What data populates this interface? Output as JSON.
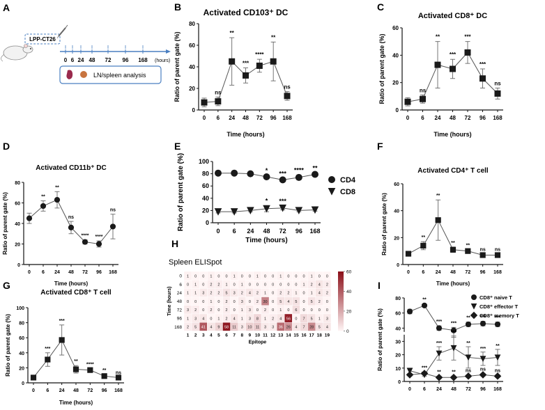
{
  "panels": {
    "A": {
      "letter": "A",
      "tumor_label": "LPP-CT26",
      "time_ticks": [
        "0",
        "6",
        "24",
        "48",
        "72",
        "96",
        "168"
      ],
      "axis_unit": "(hours)",
      "analysis_label": "LN/spleen analysis"
    },
    "H": {
      "letter": "H",
      "title": "Spleen ELISpot",
      "ylabel": "Time (hours)",
      "xlabel": "Epitope",
      "colorbar_ticks": [
        "0",
        "20",
        "40",
        "60"
      ]
    }
  },
  "chart_data": [
    {
      "panel": "B",
      "type": "line",
      "title": "Activated CD103⁺ DC",
      "xlabel": "Time (hours)",
      "ylabel": "Ratio of parent gate (%)",
      "categories": [
        "0",
        "6",
        "24",
        "48",
        "72",
        "96",
        "168"
      ],
      "ylim": [
        0,
        80
      ],
      "yticks": [
        0,
        20,
        40,
        60,
        80
      ],
      "series": [
        {
          "name": "CD103⁺ DC",
          "marker": "square",
          "values": [
            7,
            8,
            45,
            32,
            41,
            45,
            13
          ],
          "errors": [
            4,
            4,
            22,
            7,
            6,
            18,
            4
          ]
        }
      ],
      "annotations": [
        "",
        "ns",
        "**",
        "***",
        "****",
        "**",
        "ns"
      ]
    },
    {
      "panel": "C",
      "type": "line",
      "title": "Activated CD8⁺ DC",
      "xlabel": "Time (hours)",
      "ylabel": "Ratio of parent gate (%)",
      "categories": [
        "0",
        "6",
        "24",
        "48",
        "72",
        "96",
        "168"
      ],
      "ylim": [
        0,
        60
      ],
      "yticks": [
        0,
        20,
        40,
        60
      ],
      "series": [
        {
          "name": "CD8⁺ DC",
          "marker": "square",
          "values": [
            6,
            8,
            33,
            30,
            42,
            23,
            12
          ],
          "errors": [
            3,
            3,
            17,
            7,
            8,
            7,
            4
          ]
        }
      ],
      "annotations": [
        "",
        "ns",
        "**",
        "***",
        "***",
        "***",
        "ns"
      ]
    },
    {
      "panel": "D",
      "type": "line",
      "title": "Activated CD11b⁺ DC",
      "xlabel": "Time (hours)",
      "ylabel": "Ratio of parent gate (%)",
      "categories": [
        "0",
        "6",
        "24",
        "48",
        "72",
        "96",
        "168"
      ],
      "ylim": [
        0,
        80
      ],
      "yticks": [
        0,
        20,
        40,
        60,
        80
      ],
      "series": [
        {
          "name": "CD11b⁺ DC",
          "marker": "circle",
          "values": [
            45,
            57,
            63,
            36,
            22,
            20,
            37
          ],
          "errors": [
            5,
            5,
            8,
            6,
            2,
            3,
            12
          ]
        }
      ],
      "annotations": [
        "",
        "**",
        "**",
        "ns",
        "****",
        "****",
        "ns"
      ]
    },
    {
      "panel": "E",
      "type": "line",
      "title": "",
      "xlabel": "Time (hours)",
      "ylabel": "Ratio of parent gate (%)",
      "categories": [
        "0",
        "6",
        "24",
        "48",
        "72",
        "96",
        "168"
      ],
      "ylim": [
        0,
        100
      ],
      "yticks": [
        0,
        20,
        40,
        60,
        80,
        100
      ],
      "series": [
        {
          "name": "CD4",
          "marker": "circle",
          "values": [
            81,
            81,
            80,
            75,
            70,
            74,
            79
          ],
          "errors": [
            1,
            1,
            2,
            2,
            2,
            4,
            2
          ]
        },
        {
          "name": "CD8",
          "marker": "triangle",
          "values": [
            18,
            18,
            20,
            23,
            24,
            20,
            21
          ],
          "errors": [
            2,
            2,
            2,
            5,
            3,
            2,
            2
          ]
        }
      ],
      "annotations": [
        "",
        "",
        "",
        "*",
        "***",
        "****",
        "**"
      ],
      "annotations_low": [
        "",
        "",
        "",
        "*",
        "***",
        "",
        ""
      ],
      "legend_position": "right"
    },
    {
      "panel": "F",
      "type": "line",
      "title": "Activated CD4⁺ T cell",
      "xlabel": "Time (hours)",
      "ylabel": "Ratio of parent gate (%)",
      "categories": [
        "0",
        "6",
        "24",
        "48",
        "72",
        "96",
        "168"
      ],
      "ylim": [
        0,
        60
      ],
      "yticks": [
        0,
        20,
        40,
        60
      ],
      "series": [
        {
          "name": "CD4⁺ T",
          "marker": "square",
          "values": [
            8,
            14,
            33,
            11,
            10,
            7,
            7
          ],
          "errors": [
            1,
            3,
            15,
            2,
            1,
            1,
            1
          ]
        }
      ],
      "annotations": [
        "",
        "**",
        "**",
        "**",
        "**",
        "ns",
        "ns"
      ]
    },
    {
      "panel": "G",
      "type": "line",
      "title": "Activated CD8⁺ T cell",
      "xlabel": "Time (hours)",
      "ylabel": "Ratio of parent gate (%)",
      "categories": [
        "0",
        "6",
        "24",
        "48",
        "72",
        "96",
        "168"
      ],
      "ylim": [
        0,
        100
      ],
      "yticks": [
        0,
        20,
        40,
        60,
        80,
        100
      ],
      "series": [
        {
          "name": "CD8⁺ T",
          "marker": "square",
          "values": [
            7,
            31,
            57,
            18,
            17,
            9,
            7
          ],
          "errors": [
            1,
            9,
            20,
            5,
            2,
            2,
            1
          ]
        }
      ],
      "annotations": [
        "",
        "***",
        "***",
        "**",
        "****",
        "**",
        "ns"
      ]
    },
    {
      "panel": "H",
      "type": "heatmap",
      "title": "Spleen ELISpot",
      "xlabel": "Epitope",
      "ylabel": "Time (hours)",
      "categories": [
        "1",
        "2",
        "3",
        "4",
        "5",
        "6",
        "7",
        "8",
        "9",
        "10",
        "11",
        "12",
        "13",
        "14",
        "15",
        "16",
        "17",
        "18",
        "19"
      ],
      "rows": [
        "0",
        "6",
        "24",
        "48",
        "72",
        "96",
        "168"
      ],
      "values": [
        [
          1,
          0,
          0,
          1,
          0,
          0,
          1,
          0,
          0,
          1,
          0,
          0,
          1,
          0,
          0,
          0,
          1,
          0,
          0
        ],
        [
          0,
          1,
          0,
          2,
          2,
          1,
          0,
          1,
          0,
          0,
          0,
          0,
          0,
          0,
          0,
          1,
          2,
          4,
          2
        ],
        [
          1,
          1,
          3,
          2,
          2,
          5,
          3,
          2,
          4,
          2,
          1,
          0,
          2,
          2,
          1,
          0,
          1,
          4,
          2
        ],
        [
          0,
          0,
          0,
          1,
          0,
          2,
          0,
          3,
          0,
          2,
          30,
          0,
          5,
          4,
          5,
          0,
          5,
          2,
          0
        ],
        [
          3,
          2,
          0,
          2,
          0,
          2,
          0,
          1,
          3,
          0,
          2,
          0,
          1,
          0,
          6,
          0,
          0,
          0,
          0
        ],
        [
          1,
          3,
          4,
          0,
          1,
          2,
          4,
          1,
          3,
          8,
          1,
          2,
          4,
          56,
          0,
          7,
          5,
          1,
          3
        ],
        [
          2,
          5,
          41,
          4,
          9,
          58,
          11,
          3,
          10,
          11,
          3,
          3,
          36,
          26,
          4,
          7,
          28,
          5,
          4
        ]
      ],
      "ylim": [
        0,
        60
      ]
    },
    {
      "panel": "I",
      "type": "line",
      "title": "",
      "xlabel": "",
      "ylabel": "Ratio of parent gate (%)",
      "categories": [
        "0",
        "6",
        "24",
        "48",
        "72",
        "96",
        "168"
      ],
      "ylim": [
        0,
        80
      ],
      "yticks": [
        0,
        10,
        20,
        30,
        40,
        60,
        80
      ],
      "axis_break": [
        35,
        35
      ],
      "series": [
        {
          "name": "CD8⁺ naive T",
          "marker": "circle",
          "values": [
            62,
            70,
            40,
            37,
            45,
            46,
            45
          ],
          "errors": [
            3,
            2,
            3,
            4,
            3,
            3,
            3
          ]
        },
        {
          "name": "CD8⁺ effector T",
          "marker": "triangle",
          "values": [
            8,
            5,
            21,
            25,
            18,
            17,
            18
          ],
          "errors": [
            2,
            1,
            5,
            9,
            8,
            5,
            6
          ]
        },
        {
          "name": "CD8⁺ memory T",
          "marker": "diamond",
          "values": [
            5,
            6,
            3,
            3,
            4,
            5,
            4
          ],
          "errors": [
            1,
            1,
            1,
            1,
            1,
            1,
            1
          ]
        }
      ],
      "annotations": [
        "",
        "**",
        "***",
        "***",
        "**",
        "***",
        "***"
      ],
      "annotations_mid": [
        "",
        "",
        "***",
        "***",
        "**",
        "***",
        "**"
      ],
      "annotations_low": [
        "",
        "***",
        "**",
        "**",
        "ns",
        "ns",
        "ns"
      ],
      "legend_position": "top-right"
    }
  ]
}
